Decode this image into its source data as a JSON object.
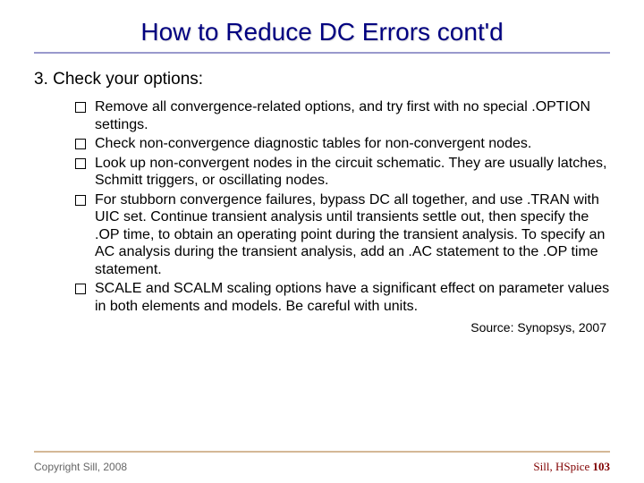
{
  "title": "How to Reduce DC Errors cont'd",
  "section": {
    "number": "3.",
    "heading": "Check your options:"
  },
  "bullets": [
    "Remove all convergence-related options, and try first with no special .OPTION settings.",
    "Check non-convergence diagnostic tables for non-convergent nodes.",
    "Look up non-convergent nodes in the circuit schematic. They are usually latches, Schmitt triggers, or oscillating nodes.",
    "For stubborn convergence failures, bypass DC all together, and use .TRAN with UIC set. Continue transient analysis until transients settle out, then specify the .OP time, to obtain an operating point during the transient analysis. To specify an AC analysis during the transient analysis, add an .AC statement to the .OP time statement.",
    "SCALE and SCALM scaling options have a significant effect on parameter values in both elements and models. Be careful with units."
  ],
  "source": "Source: Synopsys, 2007",
  "footer": {
    "copyright": "Copyright Sill, 2008",
    "ref_prefix": "Sill, HSpice",
    "page_num": "103"
  },
  "colors": {
    "title": "#000080",
    "title_rule": "#9999cc",
    "footer_rule": "#d4b896",
    "copyright": "#666666",
    "page_ref": "#800000"
  }
}
